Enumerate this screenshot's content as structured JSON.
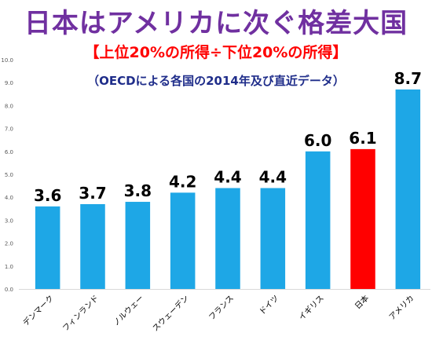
{
  "header": {
    "title": "日本はアメリカに次ぐ格差大国",
    "subtitle": "【上位20%の所得÷下位20%の所得】",
    "note": "（OECDによる各国の2014年及び直近データ）"
  },
  "colors": {
    "bar": "#1EA7E6",
    "highlight": "#FF0000",
    "title": "#7030A0",
    "subtitle": "#FF0000",
    "note": "#1F2D8A"
  },
  "chart_data": {
    "type": "bar",
    "title": "日本はアメリカに次ぐ格差大国",
    "subtitle": "【上位20%の所得÷下位20%の所得】",
    "categories": [
      "デンマーク",
      "フィンランド",
      "ノルウェー",
      "スウェーデン",
      "フランス",
      "ドイツ",
      "イギリス",
      "日本",
      "アメリカ"
    ],
    "values": [
      3.6,
      3.7,
      3.8,
      4.2,
      4.4,
      4.4,
      6.0,
      6.1,
      8.7
    ],
    "value_labels": [
      "3.6",
      "3.7",
      "3.8",
      "4.2",
      "4.4",
      "4.4",
      "6.0",
      "6.1",
      "8.7"
    ],
    "highlight_category": "日本",
    "ylim": [
      0,
      10
    ],
    "yticks": [
      "0.0",
      "1.0",
      "2.0",
      "3.0",
      "4.0",
      "5.0",
      "6.0",
      "7.0",
      "8.0",
      "9.0",
      "10.0"
    ],
    "grid": false,
    "legend": "none"
  }
}
